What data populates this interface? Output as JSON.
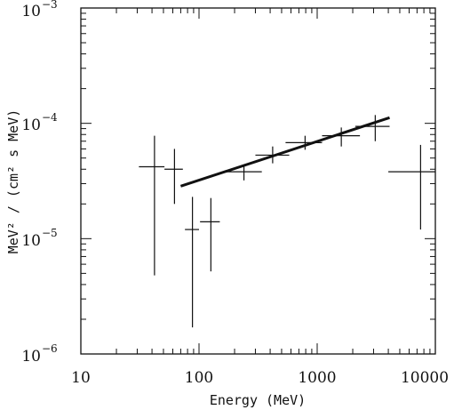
{
  "chart_data": {
    "type": "scatter",
    "title": "",
    "xlabel": "Energy (MeV)",
    "ylabel": "MeV² / (cm² s MeV)",
    "xscale": "log",
    "yscale": "log",
    "xlim": [
      10,
      10000
    ],
    "ylim": [
      1e-06,
      0.001
    ],
    "grid": false,
    "x_tick_labels": [
      "10",
      "100",
      "1000",
      "10000"
    ],
    "y_tick_labels": [
      {
        "base": "10",
        "exp": "−6"
      },
      {
        "base": "10",
        "exp": "−5"
      },
      {
        "base": "10",
        "exp": "−4"
      },
      {
        "base": "10",
        "exp": "−3"
      }
    ],
    "points": [
      {
        "x": 42,
        "y": 4.2e-05,
        "xlo": 31,
        "xhi": 51,
        "ylo": 4.8e-06,
        "yhi": 7.8e-05
      },
      {
        "x": 62,
        "y": 4e-05,
        "xlo": 51,
        "xhi": 73,
        "ylo": 2e-05,
        "yhi": 6e-05
      },
      {
        "x": 88,
        "y": 1.2e-05,
        "xlo": 76,
        "xhi": 100,
        "ylo": 1.7e-06,
        "yhi": 2.3e-05
      },
      {
        "x": 126,
        "y": 1.4e-05,
        "xlo": 102,
        "xhi": 150,
        "ylo": 5.2e-06,
        "yhi": 2.25e-05
      },
      {
        "x": 240,
        "y": 3.8e-05,
        "xlo": 170,
        "xhi": 340,
        "ylo": 3.2e-05,
        "yhi": 4.4e-05
      },
      {
        "x": 420,
        "y": 5.3e-05,
        "xlo": 300,
        "xhi": 580,
        "ylo": 4.5e-05,
        "yhi": 6.3e-05
      },
      {
        "x": 790,
        "y": 6.8e-05,
        "xlo": 540,
        "xhi": 1100,
        "ylo": 5.9e-05,
        "yhi": 7.8e-05
      },
      {
        "x": 1600,
        "y": 7.8e-05,
        "xlo": 1100,
        "xhi": 2300,
        "ylo": 6.3e-05,
        "yhi": 9.2e-05
      },
      {
        "x": 3100,
        "y": 9.4e-05,
        "xlo": 2100,
        "xhi": 4100,
        "ylo": 7e-05,
        "yhi": 0.000118
      },
      {
        "x": 7500,
        "y": 3.8e-05,
        "xlo": 4000,
        "xhi": 10000,
        "ylo": 1.2e-05,
        "yhi": 6.5e-05
      }
    ],
    "fit_line": {
      "x": [
        70,
        4100
      ],
      "y": [
        2.85e-05,
        0.000112
      ]
    }
  }
}
